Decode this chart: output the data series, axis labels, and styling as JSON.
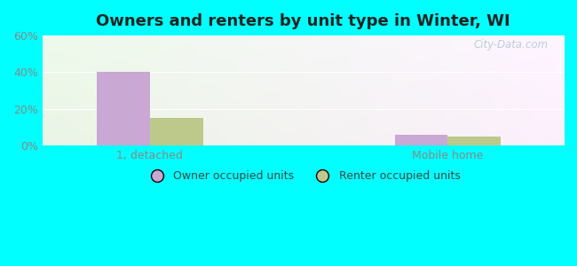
{
  "title": "Owners and renters by unit type in Winter, WI",
  "categories": [
    "1, detached",
    "Mobile home"
  ],
  "owner_values": [
    40,
    6
  ],
  "renter_values": [
    15,
    5
  ],
  "owner_color": "#c9a8d4",
  "renter_color": "#bdc98a",
  "ylim": [
    0,
    60
  ],
  "yticks": [
    0,
    20,
    40,
    60
  ],
  "ytick_labels": [
    "0%",
    "20%",
    "40%",
    "60%"
  ],
  "background_color": "#00ffff",
  "watermark": "City-Data.com",
  "bar_width": 0.32,
  "group_positions": [
    1.0,
    2.8
  ],
  "xlim": [
    0.35,
    3.5
  ],
  "legend_owner": "Owner occupied units",
  "legend_renter": "Renter occupied units",
  "grid_color": "#e0e8e0",
  "tick_color": "#888888",
  "title_color": "#222222",
  "title_fontsize": 13,
  "tick_fontsize": 9
}
